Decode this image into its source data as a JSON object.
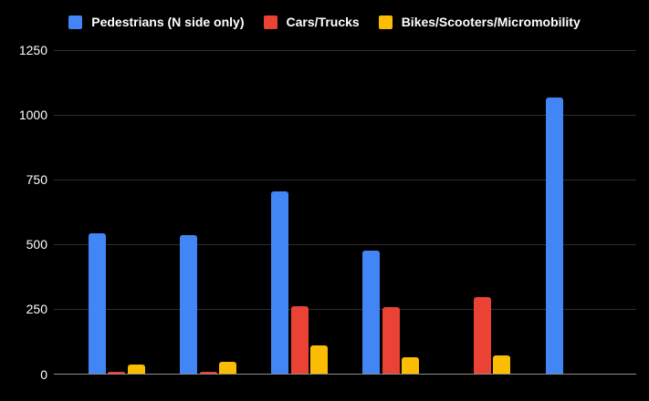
{
  "chart_data": {
    "type": "bar",
    "title": "",
    "categories": [
      "",
      "",
      "",
      "",
      "",
      ""
    ],
    "series": [
      {
        "name": "Pedestrians (N side only)",
        "color": "#4285F4",
        "values": [
          545,
          535,
          705,
          477,
          0,
          1067
        ]
      },
      {
        "name": "Cars/Trucks",
        "color": "#EA4335",
        "values": [
          8,
          8,
          263,
          257,
          296,
          0
        ]
      },
      {
        "name": "Bikes/Scooters/Micromobility",
        "color": "#FBBC04",
        "values": [
          37,
          47,
          111,
          65,
          73,
          0
        ]
      }
    ],
    "y_axis": {
      "ticks": [
        0,
        250,
        500,
        750,
        1000,
        1250
      ],
      "range": [
        0,
        1250
      ]
    },
    "x_axis": {
      "labels_visible": false
    },
    "legend_position": "top",
    "grid": true,
    "colors": {
      "background": "#000000",
      "gridline": "#2d2d2d",
      "baseline": "#8e8e8e",
      "text": "#ffffff"
    }
  }
}
